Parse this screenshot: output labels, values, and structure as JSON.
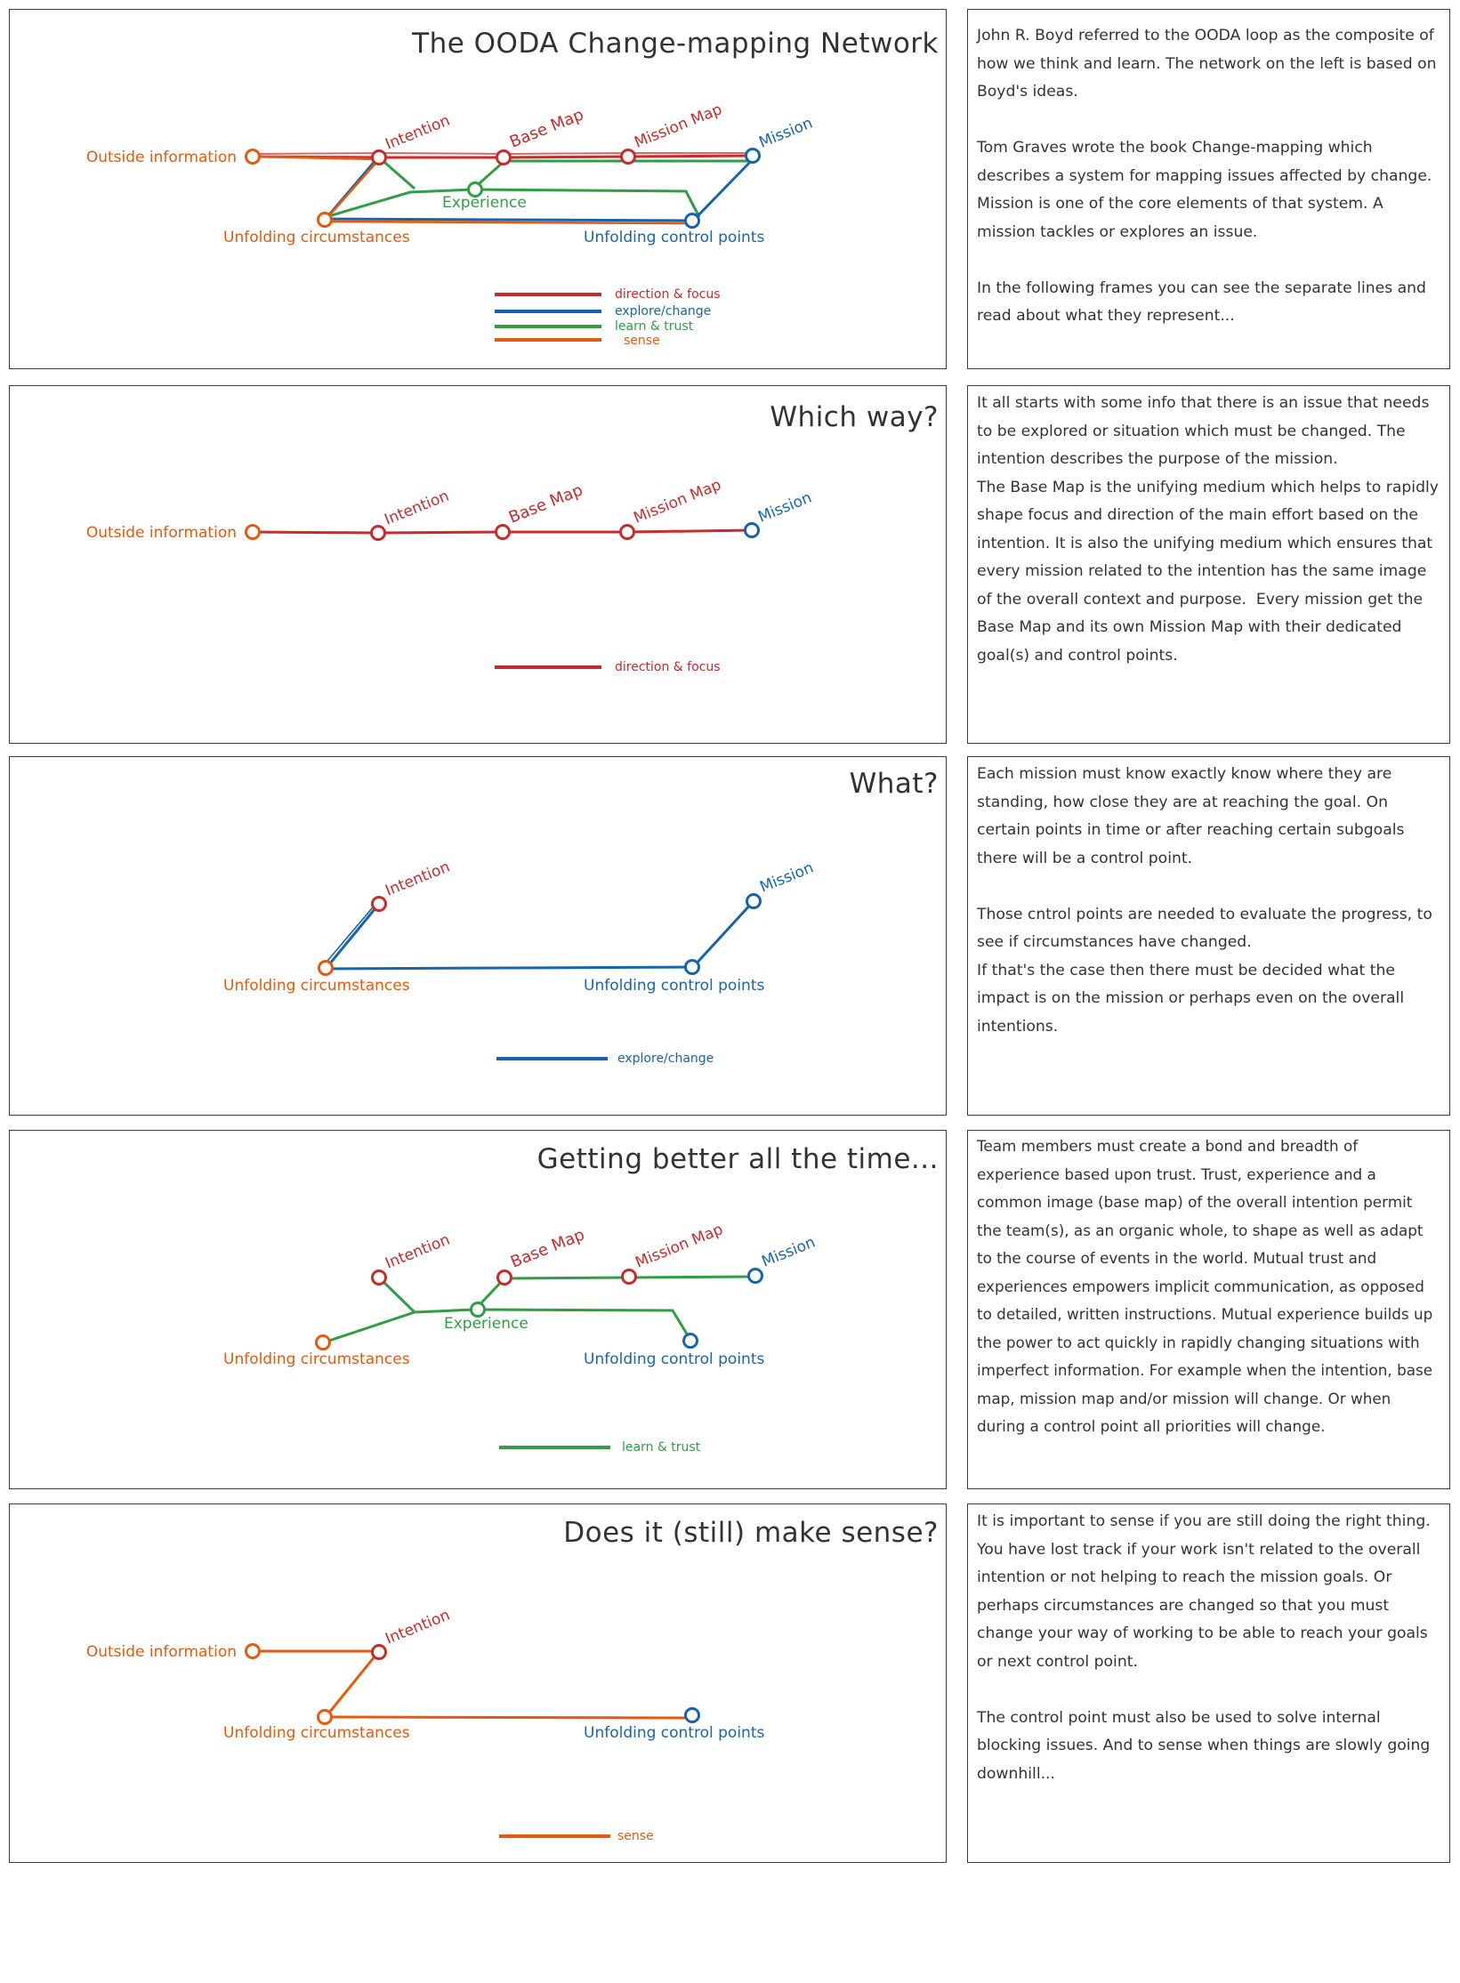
{
  "colors": {
    "direction": "#c92a2a",
    "explore": "#1864ab",
    "learn": "#2f9e44",
    "sense": "#e8590c",
    "ink": "#333333"
  },
  "panels": [
    {
      "title": "The OODA Change-mapping Network",
      "legend": [
        {
          "label": "direction & focus",
          "color": "#c92a2a"
        },
        {
          "label": "explore/change",
          "color": "#1864ab"
        },
        {
          "label": "learn & trust",
          "color": "#2f9e44"
        },
        {
          "label": "sense",
          "color": "#e8590c"
        }
      ],
      "nodes": {
        "outside": "Outside information",
        "intention": "Intention",
        "basemap": "Base Map",
        "missionmap": "Mission Map",
        "mission": "Mission",
        "experience": "Experience",
        "unfolding": "Unfolding circumstances",
        "control": "Unfolding control points"
      },
      "text": [
        "John R. Boyd referred to the OODA loop as the composite of how we think and learn. The network on the left is based on Boyd's ideas.",
        "Tom Graves wrote the book Change-mapping which describes a system for mapping issues affected by change. Mission is one of the core elements of that system. A mission tackles or explores an issue.",
        "In the following frames you can see the separate lines and read about what they represent..."
      ]
    },
    {
      "title": "Which way?",
      "legend": [
        {
          "label": "direction & focus",
          "color": "#c92a2a"
        }
      ],
      "nodes": {
        "outside": "Outside information",
        "intention": "Intention",
        "basemap": "Base Map",
        "missionmap": "Mission Map",
        "mission": "Mission"
      },
      "text": [
        "It all starts with some info that there is an issue that needs to be explored or situation which must be changed. The intention describes the purpose of the mission.\nThe Base Map is the unifying medium which helps to rapidly shape focus and direction of the main effort based on the intention. It is also the unifying medium which ensures that every mission related to the intention has the same image of the overall context and purpose.  Every mission get the Base Map and its own Mission Map with their dedicated goal(s) and control points."
      ]
    },
    {
      "title": "What?",
      "legend": [
        {
          "label": "explore/change",
          "color": "#1864ab"
        }
      ],
      "nodes": {
        "intention": "Intention",
        "mission": "Mission",
        "unfolding": "Unfolding circumstances",
        "control": "Unfolding control points"
      },
      "text": [
        "Each mission must know exactly know where they are standing, how close they are at reaching the goal. On certain points in time or after reaching certain subgoals there will be a control point.",
        "Those cntrol points are needed to evaluate the progress, to see if circumstances have changed.\nIf that's the case then there must be decided what the impact is on the mission or perhaps even on the overall intentions."
      ]
    },
    {
      "title": "Getting better all the time...",
      "legend": [
        {
          "label": "learn & trust",
          "color": "#2f9e44"
        }
      ],
      "nodes": {
        "intention": "Intention",
        "basemap": "Base Map",
        "missionmap": "Mission Map",
        "mission": "Mission",
        "experience": "Experience",
        "unfolding": "Unfolding circumstances",
        "control": "Unfolding control points"
      },
      "text": [
        "Team members must create a bond and breadth of experience based upon trust. Trust, experience and a common image (base map) of the overall intention permit the team(s), as an organic whole, to shape as well as adapt to the course of events in the world. Mutual trust and experiences empowers implicit communication, as opposed to detailed, written instructions. Mutual experience builds up the power to act quickly in rapidly changing situations with imperfect information. For example when the intention, base map, mission map and/or mission will change. Or when during a control point all priorities will change."
      ]
    },
    {
      "title": "Does it (still) make sense?",
      "legend": [
        {
          "label": "sense",
          "color": "#e8590c"
        }
      ],
      "nodes": {
        "outside": "Outside information",
        "intention": "Intention",
        "unfolding": "Unfolding circumstances",
        "control": "Unfolding control points"
      },
      "text": [
        "It is important to sense if you are still doing the right thing. You have lost track if your work isn't related to the overall intention or not helping to reach the mission goals. Or perhaps circumstances are changed so that you must change your way of working to be able to reach your goals or next control point.",
        "The control point must also be used to solve internal blocking issues. And to sense when things are slowly going downhill..."
      ]
    }
  ]
}
